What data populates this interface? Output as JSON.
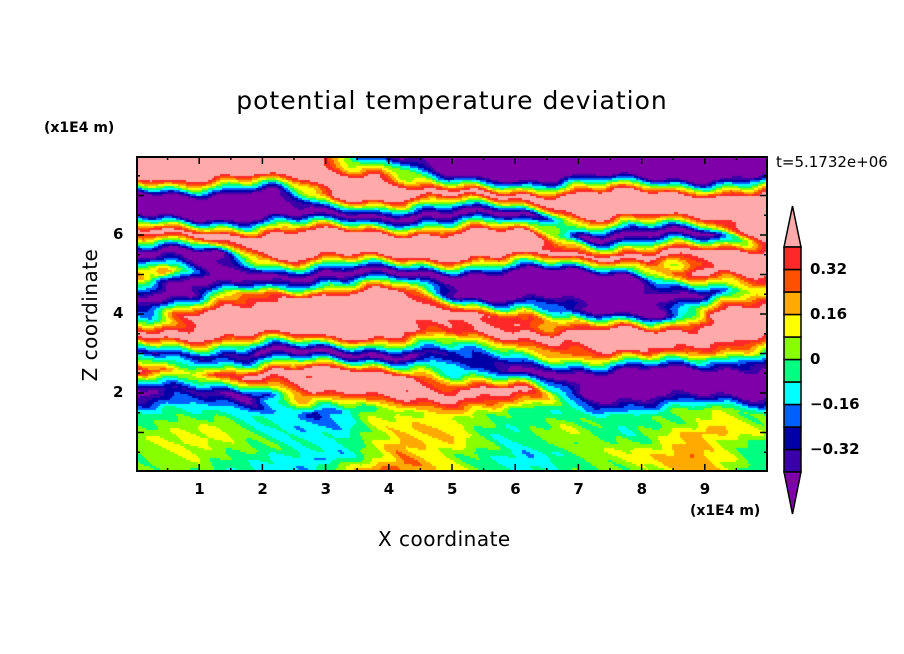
{
  "chart_data": {
    "type": "heatmap",
    "title": "potential temperature deviation",
    "xlabel": "X coordinate",
    "ylabel": "Z coordinate",
    "x_unit": "(x1E4 m)",
    "y_unit": "(x1E4 m)",
    "annotation": "t=5.1732e+06",
    "xlim": [
      0,
      10
    ],
    "ylim": [
      0,
      8
    ],
    "xticks": [
      1,
      2,
      3,
      4,
      5,
      6,
      7,
      8,
      9
    ],
    "yticks": [
      2,
      4,
      6
    ],
    "colorbar": {
      "levels": [
        -0.4,
        -0.32,
        -0.24,
        -0.16,
        -0.08,
        0,
        0.08,
        0.16,
        0.24,
        0.32,
        0.4
      ],
      "tick_labels": [
        {
          "value": 0.32,
          "label": "0.32"
        },
        {
          "value": 0.16,
          "label": "0.16"
        },
        {
          "value": 0,
          "label": "0"
        },
        {
          "value": -0.16,
          "label": "−0.16"
        },
        {
          "value": -0.32,
          "label": "−0.32"
        }
      ],
      "colors": [
        "#7f00a8",
        "#3a00a8",
        "#0000a8",
        "#0060ff",
        "#00ffff",
        "#00ff80",
        "#88ff00",
        "#ffff00",
        "#ffaa00",
        "#ff5000",
        "#ff2828",
        "#ffaaaa"
      ],
      "extend": "both"
    },
    "grid_x": [
      0,
      1,
      2,
      3,
      4,
      5,
      6,
      7,
      8,
      9,
      10
    ],
    "grid_y": [
      8,
      7.5,
      7,
      6.5,
      6,
      5.5,
      5,
      4.5,
      4,
      3.5,
      3,
      2.5,
      2,
      1.5,
      1,
      0.5,
      0
    ],
    "values_approx": [
      [
        0.5,
        0.5,
        0.5,
        0.5,
        -0.5,
        -0.5,
        -0.5,
        -0.5,
        -0.5,
        -0.5,
        -0.5
      ],
      [
        0.5,
        0.5,
        0.5,
        0.5,
        0.5,
        -0.5,
        -0.5,
        -0.5,
        -0.5,
        -0.5,
        -0.5
      ],
      [
        -0.5,
        -0.5,
        -0.5,
        0.5,
        0.5,
        0.5,
        0.5,
        0.5,
        0.5,
        0.5,
        0.5
      ],
      [
        -0.5,
        -0.5,
        -0.5,
        -0.5,
        -0.5,
        -0.5,
        -0.5,
        0.5,
        0.5,
        0.5,
        0.5
      ],
      [
        0.5,
        0.5,
        0.5,
        0.5,
        0.5,
        0.5,
        0.5,
        -0.5,
        -0.5,
        -0.5,
        0.5
      ],
      [
        -0.5,
        -0.5,
        0.5,
        0.5,
        0.5,
        0.5,
        0.5,
        0.5,
        0.5,
        0.5,
        0.5
      ],
      [
        0.5,
        -0.5,
        -0.5,
        -0.5,
        -0.5,
        -0.5,
        -0.5,
        -0.5,
        -0.5,
        0.5,
        0.5
      ],
      [
        -0.5,
        -0.5,
        0.2,
        0.5,
        0.5,
        -0.5,
        -0.5,
        -0.5,
        -0.5,
        -0.5,
        0.1
      ],
      [
        -0.2,
        0.5,
        0.5,
        0.5,
        0.5,
        0.5,
        0.3,
        -0.5,
        -0.5,
        0.5,
        0.5
      ],
      [
        0.5,
        0.5,
        0.5,
        0.5,
        0.5,
        0.3,
        0.5,
        0.5,
        0.5,
        0.5,
        0.5
      ],
      [
        -0.3,
        -0.3,
        -0.5,
        -0.5,
        -0.5,
        -0.3,
        -0.1,
        0.2,
        0.5,
        0.2,
        -0.2
      ],
      [
        0.5,
        0.1,
        0.5,
        0.5,
        0.5,
        -0.2,
        -0.5,
        -0.5,
        -0.5,
        -0.5,
        -0.5
      ],
      [
        -0.5,
        -0.3,
        -0.5,
        0.5,
        0.5,
        0.5,
        0.5,
        -0.5,
        -0.5,
        -0.5,
        -0.5
      ],
      [
        -0.05,
        -0.1,
        -0.1,
        -0.3,
        0.0,
        0.1,
        0.0,
        -0.1,
        0.0,
        0.05,
        -0.05
      ],
      [
        0.05,
        0.12,
        -0.1,
        -0.1,
        0.15,
        0.2,
        -0.1,
        0.1,
        -0.1,
        0.2,
        0.0
      ],
      [
        -0.05,
        0.1,
        0.0,
        -0.15,
        0.22,
        0.0,
        -0.15,
        0.0,
        0.1,
        0.22,
        -0.05
      ],
      [
        0.05,
        0.0,
        -0.1,
        -0.15,
        0.28,
        0.05,
        -0.1,
        0.0,
        0.05,
        0.3,
        -0.05
      ]
    ]
  }
}
